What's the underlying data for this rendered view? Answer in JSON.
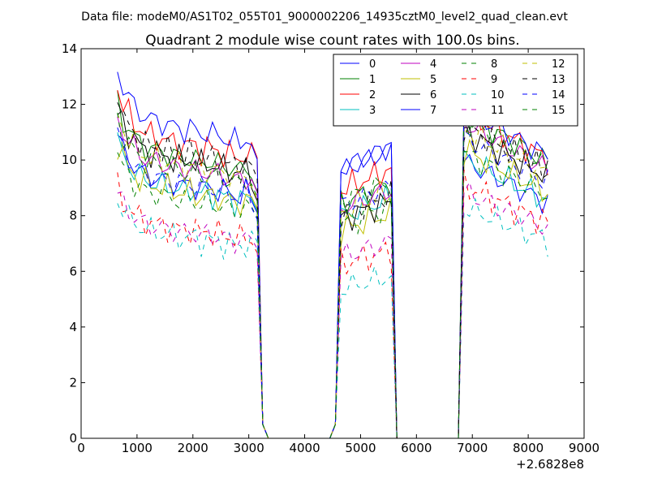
{
  "chart_data": {
    "type": "line",
    "suptitle": "Data file: modeM0/AS1T02_055T01_9000002206_14935cztM0_level2_quad_clean.evt",
    "title": "Quadrant 2 module wise count rates with 100.0s bins.",
    "xlabel": "",
    "ylabel": "",
    "xlim": [
      0,
      9000
    ],
    "ylim": [
      0,
      14
    ],
    "x_offset_label": "+2.6828e8",
    "x_ticks": [
      0,
      1000,
      2000,
      3000,
      4000,
      5000,
      6000,
      7000,
      8000,
      9000
    ],
    "y_ticks": [
      0,
      2,
      4,
      6,
      8,
      10,
      12,
      14
    ],
    "x_tick_labels": [
      "0",
      "1000",
      "2000",
      "3000",
      "4000",
      "5000",
      "6000",
      "7000",
      "8000",
      "9000"
    ],
    "y_tick_labels": [
      "0",
      "2",
      "4",
      "6",
      "8",
      "10",
      "12",
      "14"
    ],
    "grid": false,
    "legend": {
      "placement": "top-right",
      "columns": 4
    },
    "segments": [
      {
        "start": 650,
        "end": 3050
      },
      {
        "start": 4650,
        "end": 5550
      },
      {
        "start": 6850,
        "end": 8350
      }
    ],
    "series": [
      {
        "name": "0",
        "color": "#0000ff",
        "dash": "solid",
        "levels": [
          9.6,
          10.0,
          9.2
        ]
      },
      {
        "name": "1",
        "color": "#008000",
        "dash": "solid",
        "levels": [
          10.6,
          8.8,
          10.8
        ]
      },
      {
        "name": "2",
        "color": "#ff0000",
        "dash": "solid",
        "levels": [
          11.1,
          9.3,
          10.9
        ]
      },
      {
        "name": "3",
        "color": "#00bfbf",
        "dash": "solid",
        "levels": [
          9.4,
          8.3,
          9.3
        ]
      },
      {
        "name": "4",
        "color": "#bf00bf",
        "dash": "solid",
        "levels": [
          10.2,
          8.6,
          10.5
        ]
      },
      {
        "name": "5",
        "color": "#bfbf00",
        "dash": "solid",
        "levels": [
          9.3,
          7.8,
          9.6
        ]
      },
      {
        "name": "6",
        "color": "#000000",
        "dash": "solid",
        "levels": [
          10.5,
          8.2,
          10.2
        ]
      },
      {
        "name": "7",
        "color": "#0000ff",
        "dash": "solid",
        "levels": [
          11.7,
          10.1,
          11.0
        ]
      },
      {
        "name": "8",
        "color": "#008000",
        "dash": "dashed",
        "levels": [
          9.0,
          8.0,
          9.5
        ]
      },
      {
        "name": "9",
        "color": "#ff0000",
        "dash": "dashed",
        "levels": [
          7.9,
          6.5,
          8.4
        ]
      },
      {
        "name": "10",
        "color": "#00bfbf",
        "dash": "dashed",
        "levels": [
          7.6,
          5.6,
          7.7
        ]
      },
      {
        "name": "11",
        "color": "#bf00bf",
        "dash": "dashed",
        "levels": [
          7.8,
          6.8,
          8.2
        ]
      },
      {
        "name": "12",
        "color": "#bfbf00",
        "dash": "dashed",
        "levels": [
          10.3,
          8.5,
          10.3
        ]
      },
      {
        "name": "13",
        "color": "#000000",
        "dash": "dashed",
        "levels": [
          10.7,
          8.4,
          10.4
        ]
      },
      {
        "name": "14",
        "color": "#0000ff",
        "dash": "dashed",
        "levels": [
          9.6,
          8.7,
          10.0
        ]
      },
      {
        "name": "15",
        "color": "#008000",
        "dash": "dashed",
        "levels": [
          10.1,
          8.9,
          10.6
        ]
      }
    ]
  }
}
